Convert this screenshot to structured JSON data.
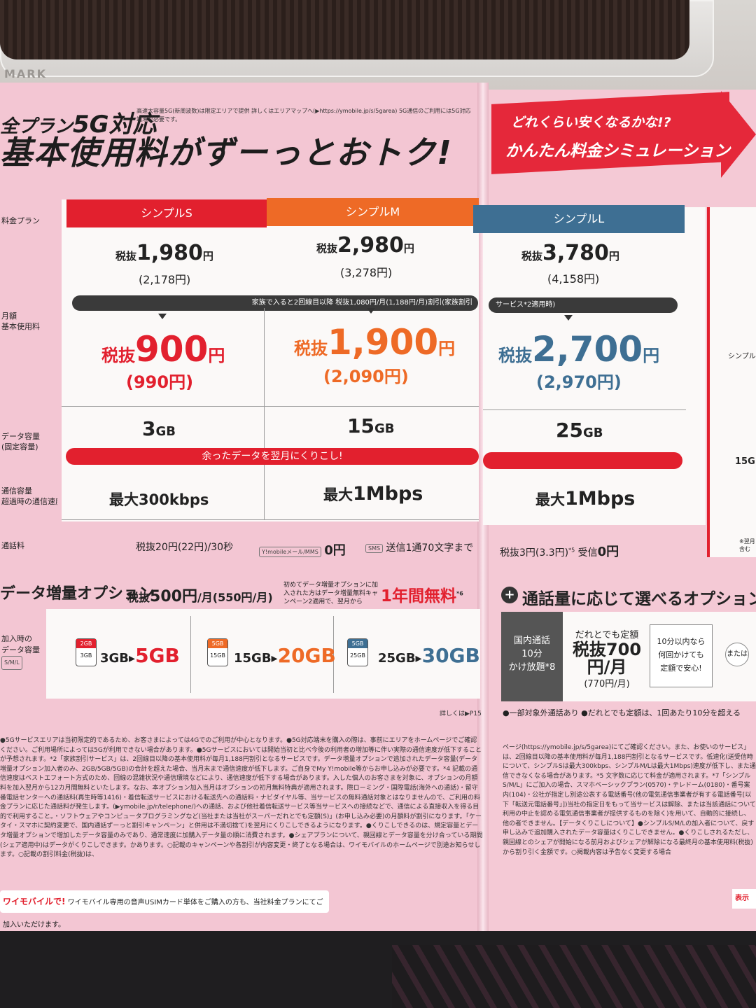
{
  "header": {
    "plan_prefix": "全プラン",
    "plan_5g": "5G対応",
    "plan_note": "高速大容量5G(新周波数)は限定エリアで提供 詳しくはエリアマップへ(▶https://ymobile.jp/s/5garea) 5G通信のご利用には5G対応端末が必要です。",
    "main": "基本使用料がずーっとおトク!",
    "tray_label": "MARK"
  },
  "simulation": {
    "question": "どれくらい安くなるかな!?",
    "title": "かんたん料金シミュレーション"
  },
  "row_labels": {
    "plan": "料金プラン",
    "monthly": "月額\n基本使用料",
    "data": "データ容量\n(固定容量)",
    "speed": "通信容量\n超過時の通信速度",
    "call": "通話料"
  },
  "plans": [
    {
      "name": "シンプルS",
      "price": "1,980",
      "tax_in": "(2,178円)",
      "disc_price": "900",
      "disc_tax_in": "(990円)",
      "data": "3",
      "color": "#e2202e"
    },
    {
      "name": "シンプルM",
      "price": "2,980",
      "tax_in": "(3,278円)",
      "disc_price": "1,900",
      "disc_tax_in": "(2,090円)",
      "data": "15",
      "color": "#ee6a26"
    },
    {
      "name": "シンプルL",
      "price": "3,780",
      "tax_in": "(4,158円)",
      "disc_price": "2,700",
      "disc_tax_in": "(2,970円)",
      "data": "25",
      "color": "#3e6f93"
    }
  ],
  "labels": {
    "tax_ex": "税抜",
    "yen": "円",
    "gb": "GB",
    "family_discount": "家族で入ると2回線目以降 税抜1,080円/月(1,188円/月)割引(家族割引",
    "service_note": "サービス*2適用時)",
    "carryover": "余ったデータを翌月にくりこし!",
    "speed_s": "最大300kbps",
    "speed_m_prefix": "最大",
    "speed_m": "1Mbps",
    "speed_l_prefix": "最大",
    "speed_l": "1Mbps",
    "call_fee": "税抜20円(22円)/30秒",
    "mail_tag": "Y!mobileメール/MMS",
    "mail_fee": "0円",
    "sms_tag": "SMS",
    "sms_fee": "送信1通70文字まで",
    "call_l": "税抜3円(3.3円)",
    "call_l_note": "*5",
    "receive": "受信",
    "receive_fee": "0円"
  },
  "option": {
    "title": "データ増量オプション",
    "price_prefix": "税抜",
    "price": "500円",
    "price_suffix": "/月(550円/月)",
    "note": "初めてデータ増量オプションに加入された方はデータ増量無料キャンペーン2適用で、翌月から",
    "free": "1年間無料",
    "free_note": "*6",
    "label": "加入時の\nデータ容量",
    "plan_tag": "S/M/L",
    "items": [
      {
        "from_can": "2GB",
        "base": "3GB",
        "from": "3GB",
        "to": "5GB",
        "color": "#e2202e"
      },
      {
        "from_can": "5GB",
        "base": "15GB",
        "from": "15GB",
        "to": "20GB",
        "color": "#ee6a26"
      },
      {
        "from_can": "5GB",
        "base": "25GB",
        "from": "25GB",
        "to": "30GB",
        "color": "#3e6f93"
      }
    ],
    "see": "詳しくは▶P15"
  },
  "call_option": {
    "title": "通話量に応じて選べるオプション",
    "box": "国内通話\n10分\nかけ放題*8",
    "teigaku_label": "だれとでも定額",
    "teigaku_price": "税抜700円/月",
    "teigaku_tax": "(770円/月)",
    "ten_min": "10分以内なら\n何回かけても\n定額で安心!",
    "or": "または",
    "foot": "●一部対象外通話あり ●だれとでも定額は、1回あたり10分を超える"
  },
  "edge": {
    "simple": "シンプル",
    "gb": "15G",
    "note": "※翌月\n含む"
  },
  "fine_left": "●5Gサービスエリアは当初限定的であるため、お客さまによっては4Gでのご利用が中心となります。●5G対応端末を購入の際は、事前にエリアをホームページでご確認ください。ご利用場所によっては5Gが利用できない場合があります。●5Gサービスにおいては開始当初と比べ今後の利用者の増加等に伴い実際の通信速度が低下することが予想されます。*2「家族割引サービス」は、2回線目以降の基本使用料が毎月1,188円割引となるサービスです。データ増量オプションで追加されたデータ容量(データ増量オプション加入者のみ、2GB/5GB/5GB)の合計を超えた場合、当月末まで通信速度が低下します。ご自身でMy Y!mobile等からお申し込みが必要です。*4 記載の通信速度はベストエフォート方式のため、回線の混雑状況や通信環境などにより、通信速度が低下する場合があります。入した個人のお客さまを対象に、オプションの月額料を加入翌月から12カ月間無料といたします。なお、本オプション加入当月はオプションの初月無料特典が適用されます。際ローミング・国際電話(海外への通話)・留守番電話センターへの通話料(再生時等1416)・着信転送サービスにおける転送先への通話料・ナビダイヤル等、当サービスの無料通話対象とはなりませんので、ご利用の料金プランに応じた通話料が発生します。(▶ymobile.jp/r/telephone/)への通話、および他社着信転送サービス等当サービスへの接続などで、通信による直接収入を得る目的で利用すること。・ソフトウェアやコンピュータプログラミングなど(当社または当社がスーパーだれとでも定額(S)」(お申し込み必要)の月額料が割引になります。「ケータイ・スマホに契約変更で、国内通話ずーっと割引キャンペーン」と併用は不満切捨て)を翌月にくりこしできるようになります。●くりこしできるのは、規定容量とデータ増量オプションで増加したデータ容量のみであり、通常速度に加購入データ量の順に消費されます。●シェアプランについて、親回線とデータ容量を分け合っている期間(シェア適用中)はデータがくりこしできます。かあります。○記載のキャンペーンや各割引が内容変更・終了となる場合は、ワイモバイルのホームページで別途お知らせします。○記載の割引料金(税抜)は、",
  "fine_right": "ページ(https://ymobile.jp/s/5garea)にてご確認ください。また、お使いのサービス」は、2回線目以降の基本使用料が毎月1,188円割引となるサービスです。低速化(送受信時について、シンプルSは最大300kbps、シンプルM/Lは最大1Mbps)速度が低下し、また通信できなくなる場合があります。*5 文字数に応じて料金が適用されます。*7「シンプルS/M/L」にご加入の場合、スマホベーシックプラン(0570)・テレドーム(0180)・番号案内(104)・公社が指定し別途公表する電話番号(他の電気通信事業者が有する電話番号[以下「転送元電話番号」])当社の指定日をもって当サービスは解除、または当該通話について利用の中止を認める電気通信事業者が提供するものを除く)を用いて、自動的に接続し、他の者できません。【データくりこしについて】●シンプルS/M/Lの加入者について、戻す申し込みで追加購入されたデータ容量はくりこしできません。●くりこしされるただし、親回線とのシェアが開始になる前月およびシェアが解除になる最終月の基本使用料(税抜)から割り引く金額です。○掲載内容は予告なく変更する場合",
  "footer": {
    "brand": "ワイモバイルで!",
    "text": "ワイモバイル専用の音声USIMカード単体をご購入の方も、当社料金プランにてご加入いただけます。",
    "right": "表示"
  }
}
